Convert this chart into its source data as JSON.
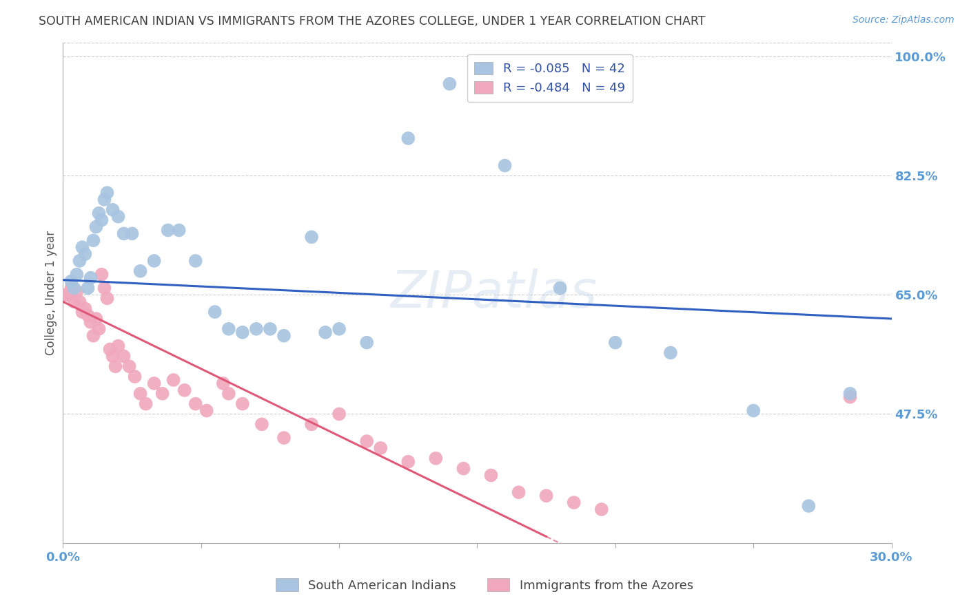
{
  "title": "SOUTH AMERICAN INDIAN VS IMMIGRANTS FROM THE AZORES COLLEGE, UNDER 1 YEAR CORRELATION CHART",
  "source": "Source: ZipAtlas.com",
  "ylabel": "College, Under 1 year",
  "xlim": [
    0.0,
    0.3
  ],
  "ylim": [
    0.285,
    1.02
  ],
  "xticks": [
    0.0,
    0.05,
    0.1,
    0.15,
    0.2,
    0.25,
    0.3
  ],
  "xticklabels": [
    "0.0%",
    "",
    "",
    "",
    "",
    "",
    "30.0%"
  ],
  "yticks_right": [
    0.475,
    0.65,
    0.825,
    1.0
  ],
  "ytick_labels_right": [
    "47.5%",
    "65.0%",
    "82.5%",
    "100.0%"
  ],
  "blue_R": "-0.085",
  "blue_N": "42",
  "pink_R": "-0.484",
  "pink_N": "49",
  "blue_color": "#a8c4e0",
  "pink_color": "#f0a8bc",
  "blue_line_color": "#3060C0",
  "pink_line_color": "#E05878",
  "title_color": "#404040",
  "axis_color": "#5B9BD5",
  "watermark": "ZIPatlas",
  "legend_label_blue": "R = -0.085   N = 42",
  "legend_label_pink": "R = -0.484   N = 49",
  "legend_label_1": "South American Indians",
  "legend_label_2": "Immigrants from the Azores",
  "blue_scatter_x": [
    0.003,
    0.004,
    0.005,
    0.006,
    0.007,
    0.008,
    0.009,
    0.01,
    0.011,
    0.012,
    0.013,
    0.014,
    0.015,
    0.016,
    0.018,
    0.02,
    0.022,
    0.025,
    0.028,
    0.033,
    0.038,
    0.042,
    0.048,
    0.055,
    0.06,
    0.065,
    0.07,
    0.075,
    0.09,
    0.095,
    0.1,
    0.11,
    0.125,
    0.14,
    0.16,
    0.18,
    0.2,
    0.22,
    0.25,
    0.27,
    0.285,
    0.08
  ],
  "blue_scatter_y": [
    0.67,
    0.66,
    0.68,
    0.7,
    0.72,
    0.71,
    0.66,
    0.675,
    0.73,
    0.75,
    0.77,
    0.76,
    0.79,
    0.8,
    0.775,
    0.765,
    0.74,
    0.74,
    0.685,
    0.7,
    0.745,
    0.745,
    0.7,
    0.625,
    0.6,
    0.595,
    0.6,
    0.6,
    0.735,
    0.595,
    0.6,
    0.58,
    0.88,
    0.96,
    0.84,
    0.66,
    0.58,
    0.565,
    0.48,
    0.34,
    0.505,
    0.59
  ],
  "pink_scatter_x": [
    0.001,
    0.002,
    0.003,
    0.004,
    0.005,
    0.006,
    0.007,
    0.008,
    0.009,
    0.01,
    0.011,
    0.012,
    0.013,
    0.014,
    0.015,
    0.016,
    0.017,
    0.018,
    0.019,
    0.02,
    0.022,
    0.024,
    0.026,
    0.028,
    0.03,
    0.033,
    0.036,
    0.04,
    0.044,
    0.048,
    0.052,
    0.058,
    0.06,
    0.065,
    0.072,
    0.08,
    0.09,
    0.1,
    0.11,
    0.115,
    0.125,
    0.135,
    0.145,
    0.155,
    0.165,
    0.175,
    0.185,
    0.195,
    0.285
  ],
  "pink_scatter_y": [
    0.65,
    0.65,
    0.66,
    0.64,
    0.655,
    0.64,
    0.625,
    0.63,
    0.62,
    0.61,
    0.59,
    0.615,
    0.6,
    0.68,
    0.66,
    0.645,
    0.57,
    0.56,
    0.545,
    0.575,
    0.56,
    0.545,
    0.53,
    0.505,
    0.49,
    0.52,
    0.505,
    0.525,
    0.51,
    0.49,
    0.48,
    0.52,
    0.505,
    0.49,
    0.46,
    0.44,
    0.46,
    0.475,
    0.435,
    0.425,
    0.405,
    0.41,
    0.395,
    0.385,
    0.36,
    0.355,
    0.345,
    0.335,
    0.5
  ],
  "blue_line_x0": 0.0,
  "blue_line_y0": 0.672,
  "blue_line_x1": 0.3,
  "blue_line_y1": 0.615,
  "pink_line_x0": 0.0,
  "pink_line_y0": 0.64,
  "pink_line_x1": 0.175,
  "pink_line_y1": 0.295
}
